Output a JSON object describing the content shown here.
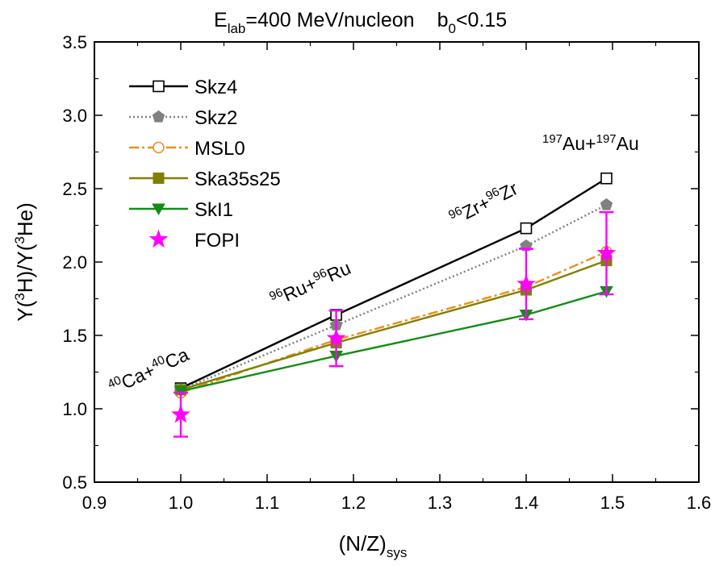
{
  "title": {
    "lhs": "E",
    "lhs_sub": "lab",
    "mid": "=400 MeV/nucleon",
    "rhs": "b",
    "rhs_sub": "0",
    "rhs_tail": "<0.15"
  },
  "xlabel": {
    "main": "(N/Z)",
    "sub": "sys"
  },
  "ylabel": {
    "a": "Y(",
    "b": "3",
    "c": "H)/Y(",
    "d": "3",
    "e": "He)"
  },
  "system_labels": [
    {
      "pre": "40",
      "a": "Ca+",
      "pre2": "40",
      "b": "Ca"
    },
    {
      "pre": "96",
      "a": "Ru+",
      "pre2": "96",
      "b": "Ru"
    },
    {
      "pre": "96",
      "a": "Zr+",
      "pre2": "96",
      "b": "Zr"
    },
    {
      "pre": "197",
      "a": "Au+",
      "pre2": "197",
      "b": "Au"
    }
  ],
  "chart_data": {
    "type": "line",
    "xlim": [
      0.9,
      1.6
    ],
    "ylim": [
      0.5,
      3.5
    ],
    "xticks": [
      "0.9",
      "1.0",
      "1.1",
      "1.2",
      "1.3",
      "1.4",
      "1.5",
      "1.6"
    ],
    "yticks": [
      "0.5",
      "1.0",
      "1.5",
      "2.0",
      "2.5",
      "3.0",
      "3.5"
    ],
    "x": [
      1.0,
      1.18,
      1.4,
      1.493
    ],
    "legend_position": "top-left",
    "series": [
      {
        "name": "Skz4",
        "color": "#000000",
        "style": "solid",
        "marker": "open-square",
        "values": [
          1.14,
          1.64,
          2.23,
          2.57
        ]
      },
      {
        "name": "Skz2",
        "color": "#808080",
        "style": "dotted",
        "marker": "filled-pentagon",
        "values": [
          1.13,
          1.57,
          2.11,
          2.39
        ]
      },
      {
        "name": "MSL0",
        "color": "#f08c19",
        "style": "dashdot",
        "marker": "open-circle",
        "values": [
          1.11,
          1.47,
          1.83,
          2.07
        ]
      },
      {
        "name": "Ska35s25",
        "color": "#808000",
        "style": "solid",
        "marker": "filled-square",
        "values": [
          1.13,
          1.45,
          1.81,
          2.01
        ]
      },
      {
        "name": "SkI1",
        "color": "#148c14",
        "style": "solid",
        "marker": "filled-triangle-down",
        "values": [
          1.12,
          1.36,
          1.64,
          1.8
        ]
      }
    ],
    "data": {
      "name": "FOPI",
      "color": "#ff00ff",
      "marker": "star",
      "values": [
        0.96,
        1.48,
        1.85,
        2.06
      ],
      "errors": [
        0.15,
        0.19,
        0.24,
        0.28
      ]
    }
  }
}
